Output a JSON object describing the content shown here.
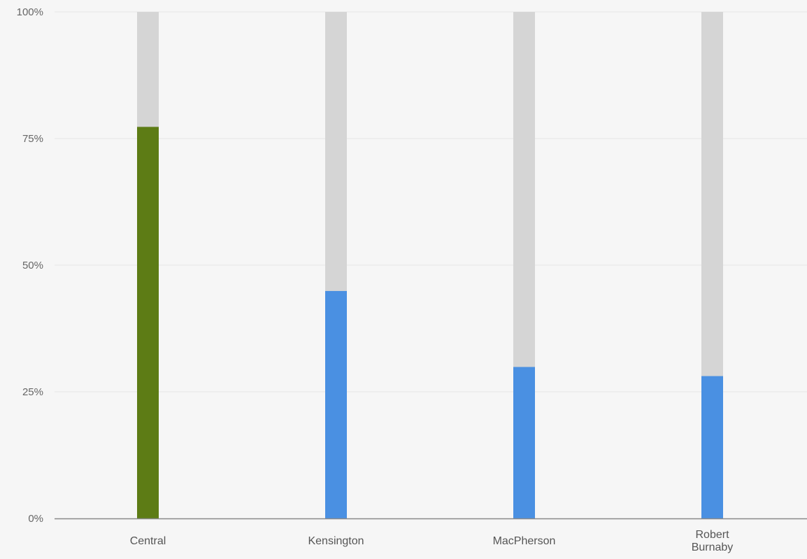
{
  "chart_data": {
    "type": "bar",
    "title": "",
    "xlabel": "",
    "ylabel": "",
    "ylim": [
      0,
      100
    ],
    "y_ticks": [
      "0%",
      "25%",
      "50%",
      "75%",
      "100%"
    ],
    "y_tick_values": [
      0,
      25,
      50,
      75,
      100
    ],
    "grid": true,
    "legend": "none",
    "categories": [
      [
        "Central"
      ],
      [
        "Kensington"
      ],
      [
        "MacPherson"
      ],
      [
        "Robert",
        "Burnaby"
      ]
    ],
    "values": [
      77.3,
      44.9,
      29.9,
      28.1
    ],
    "total": 100,
    "colors": {
      "highlight": "#5d7c15",
      "bar": "#4a90e2",
      "track": "#d5d5d5",
      "grid": "#ececec",
      "axis": "#8a8a8a"
    },
    "highlight_index": 0
  }
}
